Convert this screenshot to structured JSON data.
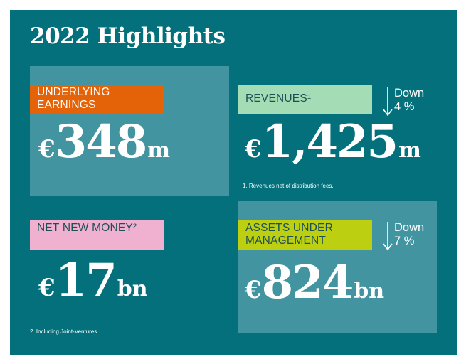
{
  "title": "2022 Highlights",
  "colors": {
    "panel": "#03707b",
    "box": "#4394a1",
    "orange": "#e46308",
    "mint": "#a4dcb6",
    "pink": "#f0b0d0",
    "lime": "#bccf10"
  },
  "cards": {
    "earnings": {
      "label": "UNDERLYING EARNINGS",
      "currency": "€",
      "value": "348",
      "unit": "m"
    },
    "revenues": {
      "label": "REVENUES¹",
      "currency": "€",
      "value": "1,425",
      "unit": "m",
      "change": "Down",
      "change_pct": "4 %",
      "footnote": "1. Revenues net of distribution fees."
    },
    "net_new_money": {
      "label": "NET NEW MONEY²",
      "currency": "€",
      "value": "17",
      "unit": "bn",
      "footnote": "2. Including Joint-Ventures."
    },
    "aum": {
      "label": "ASSETS UNDER MANAGEMENT",
      "currency": "€",
      "value": "824",
      "unit": "bn",
      "change": "Down",
      "change_pct": "7 %"
    }
  }
}
